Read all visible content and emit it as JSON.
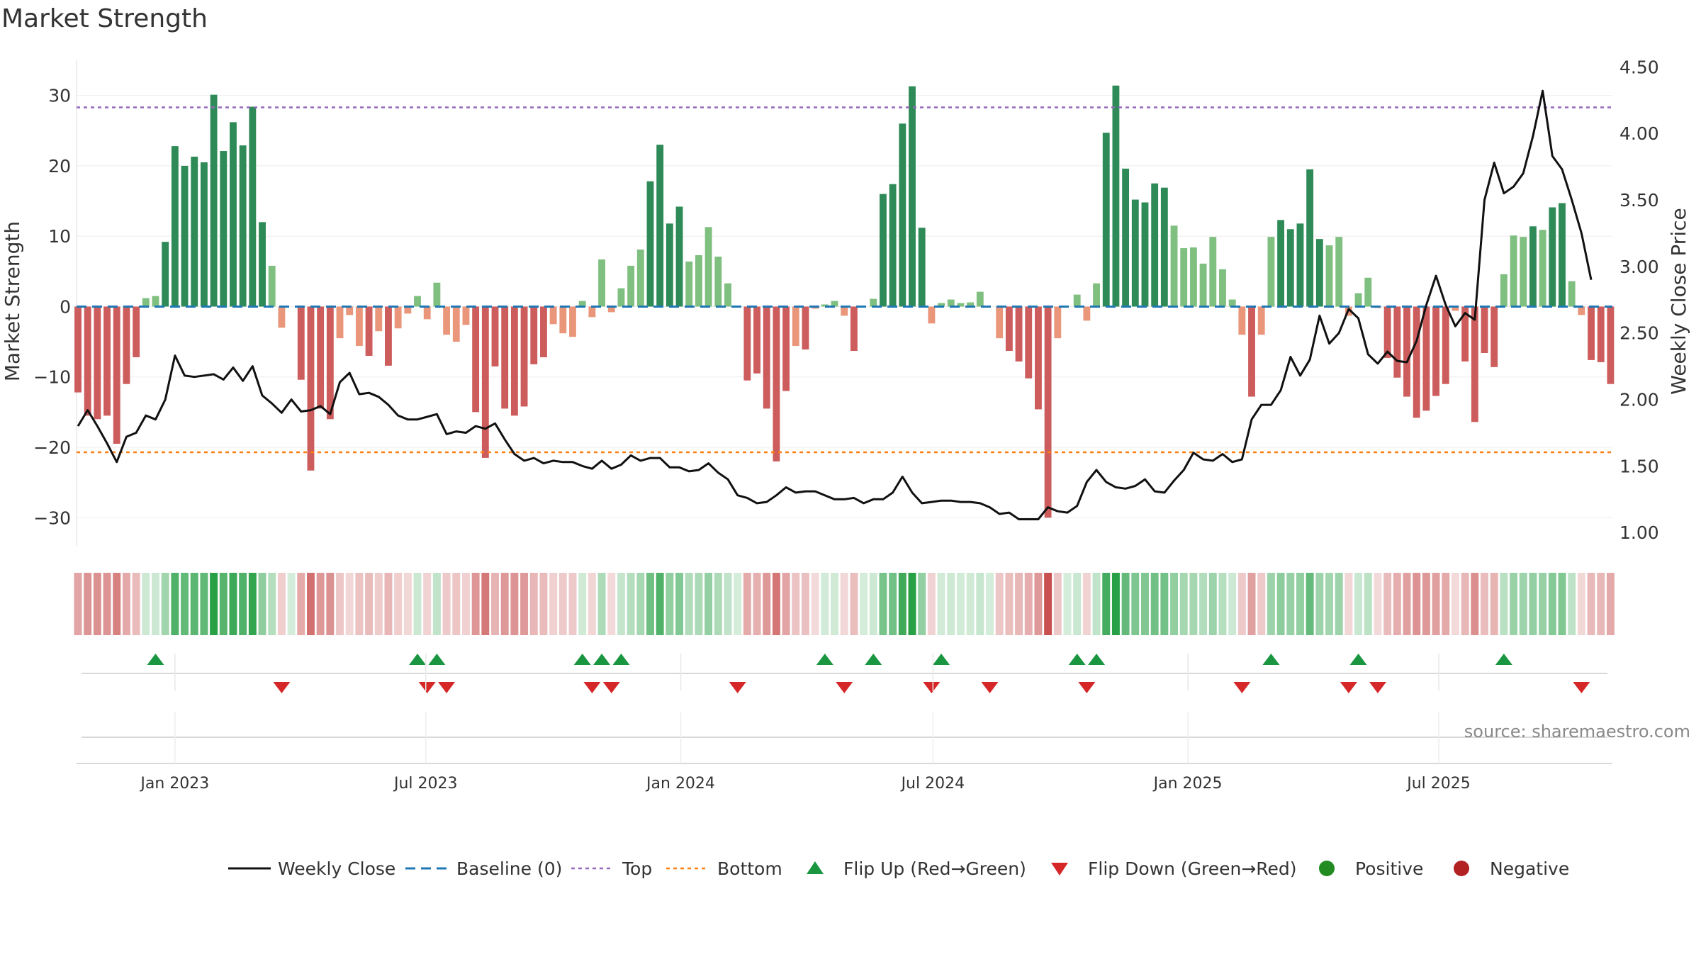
{
  "chart_data": {
    "type": "bar",
    "title": "Market Strength",
    "ylabel": "Market Strength",
    "y2label": "Weekly Close Price",
    "ylim": [
      -34,
      35
    ],
    "y2lim": [
      0.9,
      4.55
    ],
    "yticks": [
      30,
      20,
      10,
      0,
      -10,
      -20,
      -30
    ],
    "yticklabels": [
      "30",
      "20",
      "10",
      "0",
      "−10",
      "−20",
      "−30"
    ],
    "y2ticks": [
      4.5,
      4.0,
      3.5,
      3.0,
      2.5,
      2.0,
      1.5,
      1.0
    ],
    "y2ticklabels": [
      "4.50",
      "4.00",
      "3.50",
      "3.00",
      "2.50",
      "2.00",
      "1.50",
      "1.00"
    ],
    "xticks": [
      "2023-01-01",
      "2023-07-01",
      "2024-01-01",
      "2024-07-01",
      "2025-01-01",
      "2025-07-01"
    ],
    "xticklabels": [
      "Jan 2023",
      "Jul 2023",
      "Jan 2024",
      "Jul 2024",
      "Jan 2025",
      "Jul 2025"
    ],
    "x_start": "2022-10-23",
    "x_end": "2025-10-20",
    "top_level": 28.3,
    "bottom_level": -20.7,
    "source_label": "source: sharemaestro.com",
    "legend": [
      "Weekly Close",
      "Baseline (0)",
      "Top",
      "Bottom",
      "Flip Up (Red→Green)",
      "Flip Down (Green→Red)",
      "Positive",
      "Negative"
    ],
    "colors": {
      "strong_positive": "#2e8b57",
      "weak_positive": "#7fbf7f",
      "strong_negative": "#cd5c5c",
      "weak_negative": "#e9967a",
      "price_line": "#111111",
      "baseline": "#1f77b4",
      "top": "#9467bd",
      "bottom": "#ff7f0e",
      "flip_up": "#1a9641",
      "flip_down": "#d62728",
      "positive_dot": "#228b22",
      "negative_dot": "#b22222"
    },
    "weeks": [
      {
        "date": "2022-10-23",
        "strength": -12.2,
        "close": 1.8
      },
      {
        "date": "2022-10-30",
        "strength": -15.5,
        "close": 1.92
      },
      {
        "date": "2022-11-06",
        "strength": -16.0,
        "close": 1.8
      },
      {
        "date": "2022-11-13",
        "strength": -15.5,
        "close": 1.67
      },
      {
        "date": "2022-11-20",
        "strength": -19.5,
        "close": 1.53
      },
      {
        "date": "2022-11-27",
        "strength": -11.0,
        "close": 1.72
      },
      {
        "date": "2022-12-04",
        "strength": -7.2,
        "close": 1.75
      },
      {
        "date": "2022-12-11",
        "strength": 1.2,
        "close": 1.88
      },
      {
        "date": "2022-12-18",
        "strength": 1.5,
        "close": 1.85
      },
      {
        "date": "2022-12-25",
        "strength": 9.2,
        "close": 2.0
      },
      {
        "date": "2023-01-01",
        "strength": 22.8,
        "close": 2.33
      },
      {
        "date": "2023-01-08",
        "strength": 20.0,
        "close": 2.18
      },
      {
        "date": "2023-01-15",
        "strength": 21.3,
        "close": 2.17
      },
      {
        "date": "2023-01-22",
        "strength": 20.5,
        "close": 2.18
      },
      {
        "date": "2023-01-29",
        "strength": 30.1,
        "close": 2.19
      },
      {
        "date": "2023-02-05",
        "strength": 22.1,
        "close": 2.15
      },
      {
        "date": "2023-02-12",
        "strength": 26.2,
        "close": 2.24
      },
      {
        "date": "2023-02-19",
        "strength": 22.9,
        "close": 2.14
      },
      {
        "date": "2023-02-26",
        "strength": 28.4,
        "close": 2.25
      },
      {
        "date": "2023-03-05",
        "strength": 12.0,
        "close": 2.03
      },
      {
        "date": "2023-03-12",
        "strength": 5.8,
        "close": 1.97
      },
      {
        "date": "2023-03-19",
        "strength": -3.0,
        "close": 1.9
      },
      {
        "date": "2023-03-26",
        "strength": 0.0,
        "close": 2.0
      },
      {
        "date": "2023-04-02",
        "strength": -10.4,
        "close": 1.91
      },
      {
        "date": "2023-04-09",
        "strength": -23.3,
        "close": 1.92
      },
      {
        "date": "2023-04-16",
        "strength": -14.5,
        "close": 1.95
      },
      {
        "date": "2023-04-23",
        "strength": -16.0,
        "close": 1.89
      },
      {
        "date": "2023-04-30",
        "strength": -4.5,
        "close": 2.13
      },
      {
        "date": "2023-05-07",
        "strength": -1.2,
        "close": 2.2
      },
      {
        "date": "2023-05-14",
        "strength": -5.6,
        "close": 2.04
      },
      {
        "date": "2023-05-21",
        "strength": -7.0,
        "close": 2.05
      },
      {
        "date": "2023-05-28",
        "strength": -3.5,
        "close": 2.02
      },
      {
        "date": "2023-06-04",
        "strength": -8.4,
        "close": 1.96
      },
      {
        "date": "2023-06-11",
        "strength": -3.1,
        "close": 1.88
      },
      {
        "date": "2023-06-18",
        "strength": -1.0,
        "close": 1.85
      },
      {
        "date": "2023-06-25",
        "strength": 1.5,
        "close": 1.85
      },
      {
        "date": "2023-07-02",
        "strength": -1.8,
        "close": 1.87
      },
      {
        "date": "2023-07-09",
        "strength": 3.4,
        "close": 1.89
      },
      {
        "date": "2023-07-16",
        "strength": -4.0,
        "close": 1.74
      },
      {
        "date": "2023-07-23",
        "strength": -5.0,
        "close": 1.76
      },
      {
        "date": "2023-07-30",
        "strength": -2.6,
        "close": 1.75
      },
      {
        "date": "2023-08-06",
        "strength": -15.0,
        "close": 1.8
      },
      {
        "date": "2023-08-13",
        "strength": -21.5,
        "close": 1.78
      },
      {
        "date": "2023-08-20",
        "strength": -8.5,
        "close": 1.82
      },
      {
        "date": "2023-08-27",
        "strength": -14.5,
        "close": 1.7
      },
      {
        "date": "2023-09-03",
        "strength": -15.5,
        "close": 1.59
      },
      {
        "date": "2023-09-10",
        "strength": -14.2,
        "close": 1.54
      },
      {
        "date": "2023-09-17",
        "strength": -8.2,
        "close": 1.56
      },
      {
        "date": "2023-09-24",
        "strength": -7.2,
        "close": 1.52
      },
      {
        "date": "2023-10-01",
        "strength": -2.5,
        "close": 1.54
      },
      {
        "date": "2023-10-08",
        "strength": -3.8,
        "close": 1.53
      },
      {
        "date": "2023-10-15",
        "strength": -4.3,
        "close": 1.53
      },
      {
        "date": "2023-10-22",
        "strength": 0.8,
        "close": 1.5
      },
      {
        "date": "2023-10-29",
        "strength": -1.5,
        "close": 1.48
      },
      {
        "date": "2023-11-05",
        "strength": 6.7,
        "close": 1.54
      },
      {
        "date": "2023-11-12",
        "strength": -0.8,
        "close": 1.48
      },
      {
        "date": "2023-11-19",
        "strength": 2.6,
        "close": 1.51
      },
      {
        "date": "2023-11-26",
        "strength": 5.8,
        "close": 1.58
      },
      {
        "date": "2023-12-03",
        "strength": 8.1,
        "close": 1.54
      },
      {
        "date": "2023-12-10",
        "strength": 17.8,
        "close": 1.56
      },
      {
        "date": "2023-12-17",
        "strength": 23.0,
        "close": 1.56
      },
      {
        "date": "2023-12-24",
        "strength": 11.8,
        "close": 1.49
      },
      {
        "date": "2023-12-31",
        "strength": 14.2,
        "close": 1.49
      },
      {
        "date": "2024-01-07",
        "strength": 6.4,
        "close": 1.46
      },
      {
        "date": "2024-01-14",
        "strength": 7.3,
        "close": 1.47
      },
      {
        "date": "2024-01-21",
        "strength": 11.3,
        "close": 1.52
      },
      {
        "date": "2024-01-28",
        "strength": 7.1,
        "close": 1.45
      },
      {
        "date": "2024-02-04",
        "strength": 3.3,
        "close": 1.4
      },
      {
        "date": "2024-02-11",
        "strength": 0.0,
        "close": 1.28
      },
      {
        "date": "2024-02-18",
        "strength": -10.5,
        "close": 1.26
      },
      {
        "date": "2024-02-25",
        "strength": -9.5,
        "close": 1.22
      },
      {
        "date": "2024-03-03",
        "strength": -14.5,
        "close": 1.23
      },
      {
        "date": "2024-03-10",
        "strength": -22.0,
        "close": 1.28
      },
      {
        "date": "2024-03-17",
        "strength": -12.0,
        "close": 1.34
      },
      {
        "date": "2024-03-24",
        "strength": -5.6,
        "close": 1.3
      },
      {
        "date": "2024-03-31",
        "strength": -6.1,
        "close": 1.31
      },
      {
        "date": "2024-04-07",
        "strength": -0.3,
        "close": 1.31
      },
      {
        "date": "2024-04-14",
        "strength": 0.3,
        "close": 1.28
      },
      {
        "date": "2024-04-21",
        "strength": 0.8,
        "close": 1.25
      },
      {
        "date": "2024-04-28",
        "strength": -1.3,
        "close": 1.25
      },
      {
        "date": "2024-05-05",
        "strength": -6.3,
        "close": 1.26
      },
      {
        "date": "2024-05-12",
        "strength": 0.0,
        "close": 1.22
      },
      {
        "date": "2024-05-19",
        "strength": 1.1,
        "close": 1.25
      },
      {
        "date": "2024-05-26",
        "strength": 16.0,
        "close": 1.25
      },
      {
        "date": "2024-06-02",
        "strength": 17.4,
        "close": 1.3
      },
      {
        "date": "2024-06-09",
        "strength": 26.0,
        "close": 1.42
      },
      {
        "date": "2024-06-16",
        "strength": 31.3,
        "close": 1.3
      },
      {
        "date": "2024-06-23",
        "strength": 11.2,
        "close": 1.22
      },
      {
        "date": "2024-06-30",
        "strength": -2.4,
        "close": 1.23
      },
      {
        "date": "2024-07-07",
        "strength": 0.5,
        "close": 1.24
      },
      {
        "date": "2024-07-14",
        "strength": 1.0,
        "close": 1.24
      },
      {
        "date": "2024-07-21",
        "strength": 0.5,
        "close": 1.23
      },
      {
        "date": "2024-07-28",
        "strength": 0.6,
        "close": 1.23
      },
      {
        "date": "2024-08-04",
        "strength": 2.1,
        "close": 1.22
      },
      {
        "date": "2024-08-11",
        "strength": 0.0,
        "close": 1.19
      },
      {
        "date": "2024-08-18",
        "strength": -4.5,
        "close": 1.14
      },
      {
        "date": "2024-08-25",
        "strength": -6.3,
        "close": 1.15
      },
      {
        "date": "2024-09-01",
        "strength": -7.8,
        "close": 1.1
      },
      {
        "date": "2024-09-08",
        "strength": -10.2,
        "close": 1.1
      },
      {
        "date": "2024-09-15",
        "strength": -14.6,
        "close": 1.1
      },
      {
        "date": "2024-09-22",
        "strength": -30.0,
        "close": 1.19
      },
      {
        "date": "2024-09-29",
        "strength": -4.5,
        "close": 1.16
      },
      {
        "date": "2024-10-06",
        "strength": 0.0,
        "close": 1.15
      },
      {
        "date": "2024-10-13",
        "strength": 1.7,
        "close": 1.2
      },
      {
        "date": "2024-10-20",
        "strength": -2.0,
        "close": 1.38
      },
      {
        "date": "2024-10-27",
        "strength": 3.3,
        "close": 1.47
      },
      {
        "date": "2024-11-03",
        "strength": 24.7,
        "close": 1.38
      },
      {
        "date": "2024-11-10",
        "strength": 31.4,
        "close": 1.34
      },
      {
        "date": "2024-11-17",
        "strength": 19.6,
        "close": 1.33
      },
      {
        "date": "2024-11-24",
        "strength": 15.2,
        "close": 1.35
      },
      {
        "date": "2024-12-01",
        "strength": 14.8,
        "close": 1.4
      },
      {
        "date": "2024-12-08",
        "strength": 17.5,
        "close": 1.31
      },
      {
        "date": "2024-12-15",
        "strength": 16.9,
        "close": 1.3
      },
      {
        "date": "2024-12-22",
        "strength": 11.5,
        "close": 1.39
      },
      {
        "date": "2024-12-29",
        "strength": 8.3,
        "close": 1.47
      },
      {
        "date": "2025-01-05",
        "strength": 8.4,
        "close": 1.6
      },
      {
        "date": "2025-01-12",
        "strength": 6.1,
        "close": 1.55
      },
      {
        "date": "2025-01-19",
        "strength": 9.9,
        "close": 1.54
      },
      {
        "date": "2025-01-26",
        "strength": 5.3,
        "close": 1.59
      },
      {
        "date": "2025-02-02",
        "strength": 1.0,
        "close": 1.53
      },
      {
        "date": "2025-02-09",
        "strength": -4.0,
        "close": 1.55
      },
      {
        "date": "2025-02-16",
        "strength": -12.8,
        "close": 1.85
      },
      {
        "date": "2025-02-23",
        "strength": -4.0,
        "close": 1.96
      },
      {
        "date": "2025-03-02",
        "strength": 9.9,
        "close": 1.96
      },
      {
        "date": "2025-03-09",
        "strength": 12.3,
        "close": 2.07
      },
      {
        "date": "2025-03-16",
        "strength": 11.0,
        "close": 2.32
      },
      {
        "date": "2025-03-23",
        "strength": 11.8,
        "close": 2.18
      },
      {
        "date": "2025-03-30",
        "strength": 19.5,
        "close": 2.3
      },
      {
        "date": "2025-04-06",
        "strength": 9.6,
        "close": 2.63
      },
      {
        "date": "2025-04-13",
        "strength": 8.7,
        "close": 2.42
      },
      {
        "date": "2025-04-20",
        "strength": 9.9,
        "close": 2.5
      },
      {
        "date": "2025-04-27",
        "strength": -1.3,
        "close": 2.68
      },
      {
        "date": "2025-05-04",
        "strength": 1.9,
        "close": 2.61
      },
      {
        "date": "2025-05-11",
        "strength": 4.1,
        "close": 2.34
      },
      {
        "date": "2025-05-18",
        "strength": -0.2,
        "close": 2.27
      },
      {
        "date": "2025-05-25",
        "strength": -7.3,
        "close": 2.36
      },
      {
        "date": "2025-06-01",
        "strength": -10.1,
        "close": 2.29
      },
      {
        "date": "2025-06-08",
        "strength": -12.8,
        "close": 2.28
      },
      {
        "date": "2025-06-15",
        "strength": -15.8,
        "close": 2.44
      },
      {
        "date": "2025-06-22",
        "strength": -14.8,
        "close": 2.71
      },
      {
        "date": "2025-06-29",
        "strength": -12.7,
        "close": 2.93
      },
      {
        "date": "2025-07-06",
        "strength": -11.0,
        "close": 2.71
      },
      {
        "date": "2025-07-13",
        "strength": -0.6,
        "close": 2.55
      },
      {
        "date": "2025-07-20",
        "strength": -7.8,
        "close": 2.65
      },
      {
        "date": "2025-07-27",
        "strength": -16.4,
        "close": 2.6
      },
      {
        "date": "2025-08-03",
        "strength": -6.6,
        "close": 3.5
      },
      {
        "date": "2025-08-10",
        "strength": -8.6,
        "close": 3.78
      },
      {
        "date": "2025-08-17",
        "strength": 4.6,
        "close": 3.55
      },
      {
        "date": "2025-08-24",
        "strength": 10.1,
        "close": 3.6
      },
      {
        "date": "2025-08-31",
        "strength": 9.9,
        "close": 3.7
      },
      {
        "date": "2025-09-07",
        "strength": 11.4,
        "close": 3.98
      },
      {
        "date": "2025-09-14",
        "strength": 10.9,
        "close": 4.32
      },
      {
        "date": "2025-09-21",
        "strength": 14.1,
        "close": 3.83
      },
      {
        "date": "2025-09-28",
        "strength": 14.7,
        "close": 3.73
      },
      {
        "date": "2025-10-05",
        "strength": 3.6,
        "close": 3.5
      },
      {
        "date": "2025-10-12",
        "strength": -1.2,
        "close": 3.25
      },
      {
        "date": "2025-10-19",
        "strength": -7.6,
        "close": 2.9
      },
      {
        "date": "2025-10-26",
        "strength": -7.9,
        "close": null
      },
      {
        "date": "2025-11-02",
        "strength": -11.0,
        "close": null
      }
    ],
    "flips_up": [
      "2022-12-18",
      "2023-06-25",
      "2023-07-09",
      "2023-10-22",
      "2023-11-05",
      "2023-11-19",
      "2024-04-14",
      "2024-05-19",
      "2024-07-07",
      "2024-10-13",
      "2024-10-27",
      "2025-03-02",
      "2025-05-04",
      "2025-08-17"
    ],
    "flips_down": [
      "2023-03-19",
      "2023-07-02",
      "2023-07-16",
      "2023-10-29",
      "2023-11-12",
      "2024-02-11",
      "2024-04-28",
      "2024-06-30",
      "2024-08-11",
      "2024-10-20",
      "2025-02-09",
      "2025-04-27",
      "2025-05-18",
      "2025-10-12"
    ]
  }
}
